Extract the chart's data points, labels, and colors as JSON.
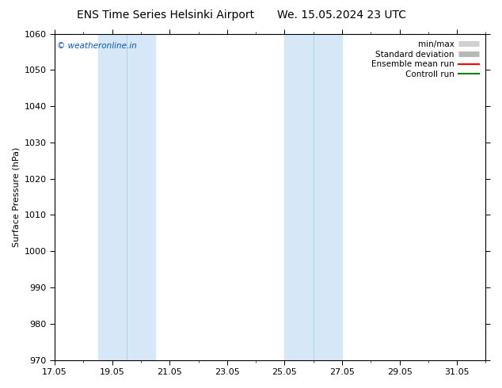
{
  "title_left": "ENS Time Series Helsinki Airport",
  "title_right": "We. 15.05.2024 23 UTC",
  "ylabel": "Surface Pressure (hPa)",
  "ylim": [
    970,
    1060
  ],
  "yticks": [
    970,
    980,
    990,
    1000,
    1010,
    1020,
    1030,
    1040,
    1050,
    1060
  ],
  "xtick_labels": [
    "17.05",
    "19.05",
    "21.05",
    "23.05",
    "25.05",
    "27.05",
    "29.05",
    "31.05"
  ],
  "xtick_positions": [
    0,
    2,
    4,
    6,
    8,
    10,
    12,
    14
  ],
  "xlim": [
    0,
    15
  ],
  "shaded_regions": [
    {
      "xstart": 1.5,
      "xend": 3.5
    },
    {
      "xstart": 8.0,
      "xend": 10.0
    }
  ],
  "shaded_color": "#d6e8f7",
  "shaded_divider_color": "#b0cce0",
  "watermark_text": "© weatheronline.in",
  "watermark_color": "#0055cc",
  "legend_items": [
    {
      "label": "min/max",
      "color": "#d0d0d0",
      "type": "line_box"
    },
    {
      "label": "Standard deviation",
      "color": "#b8b8b8",
      "type": "line_box"
    },
    {
      "label": "Ensemble mean run",
      "color": "red",
      "lw": 1.5,
      "type": "line"
    },
    {
      "label": "Controll run",
      "color": "green",
      "lw": 1.5,
      "type": "line"
    }
  ],
  "bg_color": "#ffffff",
  "plot_bg_color": "#ffffff",
  "title_fontsize": 10,
  "ylabel_fontsize": 8,
  "tick_fontsize": 8,
  "legend_fontsize": 7.5
}
